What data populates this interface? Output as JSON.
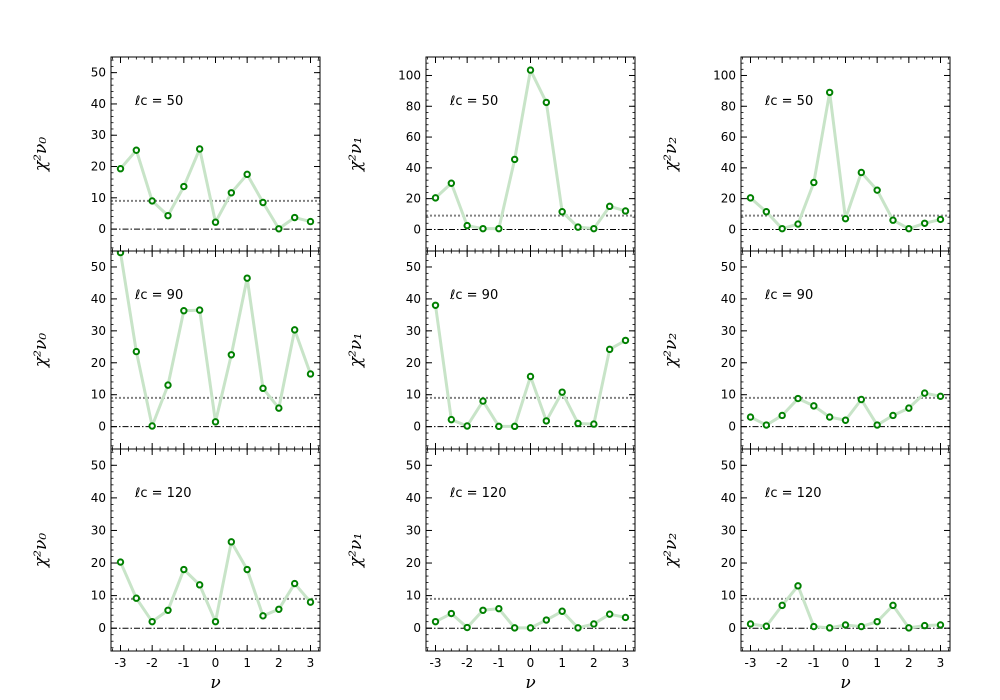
{
  "chart_data": {
    "type": "line",
    "x": [
      -3,
      -2.5,
      -2,
      -1.5,
      -1,
      -0.5,
      0,
      0.5,
      1,
      1.5,
      2,
      2.5,
      3
    ],
    "xticks": [
      -3,
      -2,
      -1,
      0,
      1,
      2,
      3
    ],
    "xlabel": "ν",
    "threshold": 9,
    "marker_color": "#008000",
    "line_color": "#c8e4c8",
    "threshold_color": "#808080",
    "ylabels": [
      "χ²ν₀",
      "χ²ν₁",
      "χ²ν₂"
    ],
    "rows": [
      {
        "annotation": "ℓc = 50",
        "panels": [
          {
            "ylim": [
              -7,
              55
            ],
            "yticks": [
              0,
              10,
              20,
              30,
              40,
              50
            ],
            "values": [
              19.3,
              25.2,
              9.0,
              4.3,
              13.6,
              25.6,
              2.2,
              11.6,
              17.5,
              8.5,
              0.1,
              3.7,
              2.4
            ]
          },
          {
            "ylim": [
              -14,
              112
            ],
            "yticks": [
              0,
              20,
              40,
              60,
              80,
              100
            ],
            "values": [
              20.5,
              30.0,
              2.5,
              0.5,
              0.5,
              45.5,
              103.5,
              82.5,
              11.5,
              1.5,
              0.5,
              15.0,
              12.0
            ]
          },
          {
            "ylim": [
              -14,
              112
            ],
            "yticks": [
              0,
              20,
              40,
              60,
              80,
              100
            ],
            "values": [
              20.5,
              11.5,
              0.5,
              3.5,
              30.5,
              89.0,
              7.0,
              37.0,
              25.5,
              6.0,
              0.5,
              4.0,
              6.5
            ]
          }
        ]
      },
      {
        "annotation": "ℓc = 90",
        "panels": [
          {
            "ylim": [
              -7,
              55
            ],
            "yticks": [
              0,
              10,
              20,
              30,
              40,
              50
            ],
            "values": [
              54.5,
              23.5,
              0.2,
              13.0,
              36.3,
              36.5,
              1.5,
              22.5,
              46.5,
              12.0,
              5.8,
              30.3,
              16.5
            ]
          },
          {
            "ylim": [
              -7,
              55
            ],
            "yticks": [
              0,
              10,
              20,
              30,
              40,
              50
            ],
            "values": [
              38.0,
              2.2,
              0.2,
              8.0,
              0.1,
              0.1,
              15.7,
              1.8,
              10.8,
              1.0,
              0.8,
              24.2,
              27.0
            ]
          },
          {
            "ylim": [
              -7,
              55
            ],
            "yticks": [
              0,
              10,
              20,
              30,
              40,
              50
            ],
            "values": [
              3.0,
              0.5,
              3.5,
              8.8,
              6.5,
              3.0,
              2.0,
              8.5,
              0.5,
              3.5,
              5.8,
              10.5,
              9.5
            ]
          }
        ]
      },
      {
        "annotation": "ℓc = 120",
        "panels": [
          {
            "ylim": [
              -7,
              55
            ],
            "yticks": [
              0,
              10,
              20,
              30,
              40,
              50
            ],
            "values": [
              20.3,
              9.2,
              2.0,
              5.5,
              18.0,
              13.3,
              2.0,
              26.5,
              18.0,
              3.8,
              5.8,
              13.7,
              8.0
            ]
          },
          {
            "ylim": [
              -7,
              55
            ],
            "yticks": [
              0,
              10,
              20,
              30,
              40,
              50
            ],
            "values": [
              2.0,
              4.5,
              0.2,
              5.5,
              6.0,
              0.1,
              0.1,
              2.5,
              5.2,
              0.1,
              1.3,
              4.3,
              3.3
            ]
          },
          {
            "ylim": [
              -7,
              55
            ],
            "yticks": [
              0,
              10,
              20,
              30,
              40,
              50
            ],
            "values": [
              1.3,
              0.6,
              7.0,
              13.0,
              0.5,
              0.1,
              1.0,
              0.5,
              2.0,
              7.0,
              0.1,
              0.8,
              1.0
            ]
          }
        ]
      }
    ]
  }
}
